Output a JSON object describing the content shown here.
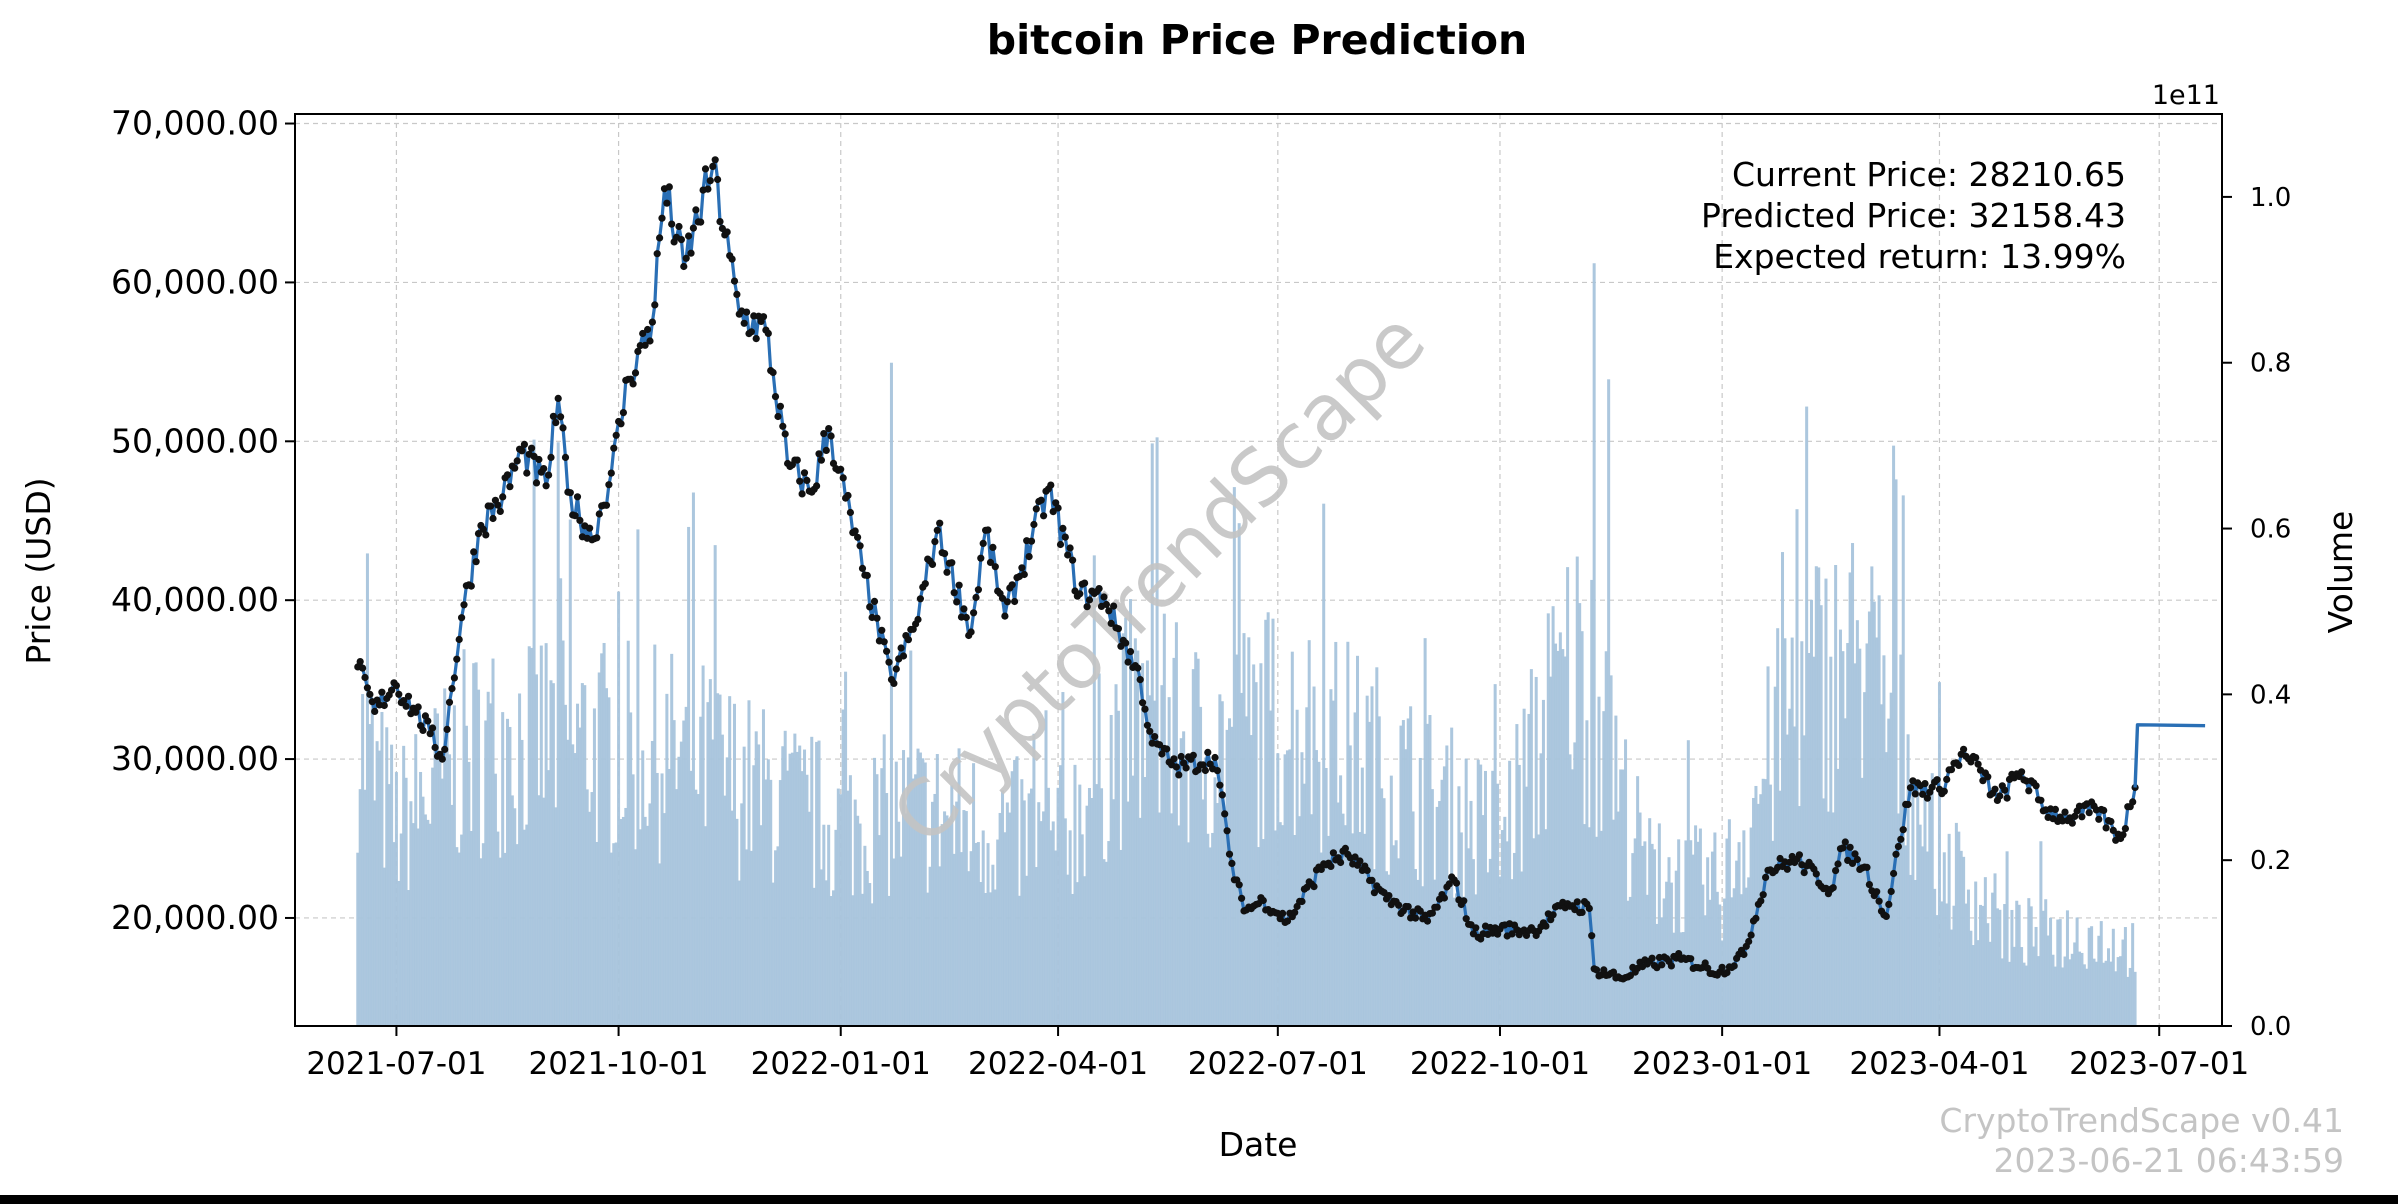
{
  "chart_data": {
    "type": "line",
    "title": "bitcoin Price Prediction",
    "xlabel": "Date",
    "ylabel": "Price (USD)",
    "y2label": "Volume",
    "y2_exponent_label": "1e11",
    "ylim": [
      13200,
      70600
    ],
    "y2lim": [
      0,
      1.1
    ],
    "xlim": [
      "2021-05-20",
      "2023-07-27"
    ],
    "grid": true,
    "x_ticks": [
      "2021-07-01",
      "2021-10-01",
      "2022-01-01",
      "2022-04-01",
      "2022-07-01",
      "2022-10-01",
      "2023-01-01",
      "2023-04-01",
      "2023-07-01"
    ],
    "y_ticks": [
      "20,000.00",
      "30,000.00",
      "40,000.00",
      "50,000.00",
      "60,000.00",
      "70,000.00"
    ],
    "y2_ticks": [
      "0.0",
      "0.2",
      "0.4",
      "0.6",
      "0.8",
      "1.0"
    ],
    "price_series": {
      "name": "Price",
      "color": "#2a6fb5",
      "x": [
        "2021-06-15",
        "2021-06-22",
        "2021-06-30",
        "2021-07-08",
        "2021-07-15",
        "2021-07-20",
        "2021-07-28",
        "2021-08-05",
        "2021-08-14",
        "2021-08-22",
        "2021-09-01",
        "2021-09-06",
        "2021-09-10",
        "2021-09-20",
        "2021-09-28",
        "2021-10-05",
        "2021-10-15",
        "2021-10-20",
        "2021-10-28",
        "2021-11-09",
        "2021-11-20",
        "2021-12-01",
        "2021-12-10",
        "2021-12-20",
        "2021-12-27",
        "2022-01-10",
        "2022-01-22",
        "2022-02-01",
        "2022-02-10",
        "2022-02-24",
        "2022-03-02",
        "2022-03-10",
        "2022-03-28",
        "2022-04-10",
        "2022-04-20",
        "2022-05-05",
        "2022-05-10",
        "2022-05-20",
        "2022-06-05",
        "2022-06-13",
        "2022-06-18",
        "2022-06-25",
        "2022-07-05",
        "2022-07-20",
        "2022-07-30",
        "2022-08-15",
        "2022-08-20",
        "2022-09-01",
        "2022-09-12",
        "2022-09-20",
        "2022-10-01",
        "2022-10-15",
        "2022-10-29",
        "2022-11-07",
        "2022-11-09",
        "2022-11-20",
        "2022-12-01",
        "2022-12-15",
        "2022-12-31",
        "2023-01-10",
        "2023-01-20",
        "2023-02-01",
        "2023-02-15",
        "2023-02-20",
        "2023-03-01",
        "2023-03-10",
        "2023-03-15",
        "2023-03-20",
        "2023-04-01",
        "2023-04-10",
        "2023-04-18",
        "2023-04-25",
        "2023-05-05",
        "2023-05-15",
        "2023-05-25",
        "2023-06-05",
        "2023-06-15",
        "2023-06-21"
      ],
      "values": [
        35800,
        33000,
        34800,
        33200,
        31600,
        30000,
        38900,
        44700,
        46500,
        49400,
        47200,
        52700,
        46800,
        43800,
        48000,
        53900,
        57500,
        65900,
        61000,
        67300,
        58000,
        57000,
        48600,
        46800,
        50800,
        42000,
        35000,
        38500,
        44400,
        38000,
        44400,
        39000,
        47000,
        40400,
        40200,
        35000,
        31000,
        29500,
        30100,
        22400,
        20500,
        21100,
        19800,
        23400,
        24000,
        21200,
        20800,
        19800,
        22400,
        19000,
        19300,
        19200,
        20900,
        20600,
        16800,
        16200,
        17100,
        17400,
        16600,
        17700,
        23000,
        23700,
        21800,
        24400,
        23200,
        20100,
        24500,
        28200,
        28100,
        30300,
        29300,
        27400,
        29200,
        26800,
        26300,
        26800,
        25000,
        28210.65
      ]
    },
    "prediction_series": {
      "name": "Prediction",
      "color": "#2a6fb5",
      "x": [
        "2023-06-21",
        "2023-06-22",
        "2023-07-20"
      ],
      "values": [
        28210.65,
        32158.43,
        32100
      ]
    },
    "volume_series": {
      "name": "Volume",
      "color": "#a8c4dc",
      "x": [
        "2021-06-15",
        "2021-07-01",
        "2021-08-01",
        "2021-09-01",
        "2021-10-01",
        "2021-11-01",
        "2021-12-01",
        "2022-01-01",
        "2022-02-01",
        "2022-03-01",
        "2022-04-01",
        "2022-05-01",
        "2022-06-01",
        "2022-07-01",
        "2022-08-01",
        "2022-09-01",
        "2022-10-01",
        "2022-11-01",
        "2022-12-01",
        "2023-01-01",
        "2023-02-01",
        "2023-03-01",
        "2023-04-01",
        "2023-05-01",
        "2023-06-01",
        "2023-06-21"
      ],
      "values": [
        0.38,
        0.26,
        0.36,
        0.38,
        0.36,
        0.35,
        0.3,
        0.26,
        0.28,
        0.26,
        0.24,
        0.4,
        0.36,
        0.4,
        0.36,
        0.3,
        0.24,
        0.48,
        0.2,
        0.18,
        0.44,
        0.48,
        0.22,
        0.12,
        0.12,
        0.1
      ],
      "peaks": [
        {
          "x": "2021-06-19",
          "value": 0.57
        },
        {
          "x": "2021-09-07",
          "value": 0.54
        },
        {
          "x": "2021-11-10",
          "value": 0.58
        },
        {
          "x": "2022-01-22",
          "value": 0.8
        },
        {
          "x": "2022-05-12",
          "value": 0.71
        },
        {
          "x": "2022-06-13",
          "value": 0.65
        },
        {
          "x": "2022-07-20",
          "value": 0.63
        },
        {
          "x": "2022-11-09",
          "value": 0.92
        },
        {
          "x": "2022-11-15",
          "value": 0.78
        },
        {
          "x": "2023-03-13",
          "value": 0.7
        },
        {
          "x": "2023-03-17",
          "value": 0.64
        }
      ]
    },
    "annotations": {
      "current_price": "Current Price: 28210.65",
      "predicted_price": "Predicted Price: 32158.43",
      "expected_return": "Expected return: 13.99%"
    },
    "watermark": "CryptoTrendScape",
    "footer": {
      "version": "CryptoTrendScape v0.41",
      "timestamp": "2023-06-21 06:43:59"
    }
  }
}
